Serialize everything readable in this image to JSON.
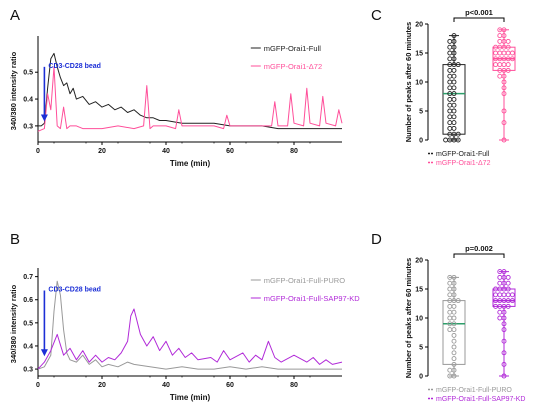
{
  "chart_data": [
    {
      "panel": "A",
      "type": "line",
      "xlabel": "Time (min)",
      "ylabel": "340/380 intensity ratio",
      "xlim": [
        0,
        95
      ],
      "ylim": [
        0.24,
        0.62
      ],
      "xticks": [
        0,
        20,
        40,
        60,
        80
      ],
      "yticks": [
        0.3,
        0.4,
        0.5
      ],
      "ytick_labels": [
        "0.3",
        "0.4",
        "0.5"
      ],
      "annotation": "CD3-CD28 bead",
      "annotation_x": 2,
      "annotation_arrow": [
        0.52,
        0.32
      ],
      "legend": "top-right",
      "series": [
        {
          "name": "mGFP-Orai1-Full",
          "color": "#222222",
          "x": [
            0,
            1,
            2,
            3,
            4,
            5,
            6,
            7,
            8,
            9,
            10,
            11,
            12,
            14,
            16,
            18,
            20,
            22,
            24,
            26,
            28,
            30,
            32,
            34,
            36,
            38,
            40,
            45,
            50,
            55,
            60,
            65,
            70,
            75,
            80,
            85,
            90,
            95
          ],
          "y": [
            0.3,
            0.3,
            0.31,
            0.44,
            0.55,
            0.57,
            0.52,
            0.48,
            0.45,
            0.46,
            0.42,
            0.44,
            0.4,
            0.41,
            0.38,
            0.39,
            0.37,
            0.38,
            0.36,
            0.37,
            0.35,
            0.36,
            0.34,
            0.33,
            0.33,
            0.32,
            0.32,
            0.31,
            0.31,
            0.31,
            0.3,
            0.3,
            0.3,
            0.29,
            0.29,
            0.29,
            0.29,
            0.29
          ]
        },
        {
          "name": "mGFP-Orai1-Δ72",
          "color": "#ff4f9a",
          "x": [
            0,
            2,
            3,
            4,
            5,
            6,
            7,
            8,
            9,
            10,
            12,
            14,
            20,
            25,
            30,
            33,
            34,
            35,
            36,
            40,
            43,
            44,
            45,
            50,
            55,
            58,
            59,
            60,
            65,
            70,
            73,
            74,
            75,
            78,
            79,
            80,
            83,
            84,
            85,
            88,
            89,
            90,
            93,
            94,
            95
          ],
          "y": [
            0.28,
            0.29,
            0.42,
            0.36,
            0.52,
            0.3,
            0.29,
            0.37,
            0.29,
            0.3,
            0.3,
            0.29,
            0.29,
            0.3,
            0.29,
            0.3,
            0.45,
            0.29,
            0.3,
            0.3,
            0.29,
            0.36,
            0.3,
            0.3,
            0.3,
            0.29,
            0.34,
            0.3,
            0.3,
            0.3,
            0.3,
            0.39,
            0.3,
            0.3,
            0.42,
            0.31,
            0.3,
            0.44,
            0.31,
            0.3,
            0.41,
            0.31,
            0.3,
            0.36,
            0.31
          ]
        }
      ]
    },
    {
      "panel": "B",
      "type": "line",
      "xlabel": "Time (min)",
      "ylabel": "340/380 intensity ratio",
      "xlim": [
        0,
        95
      ],
      "ylim": [
        0.27,
        0.72
      ],
      "xticks": [
        0,
        20,
        40,
        60,
        80
      ],
      "yticks": [
        0.3,
        0.4,
        0.5,
        0.6,
        0.7
      ],
      "ytick_labels": [
        "0.3",
        "0.4",
        "0.5",
        "0.6",
        "0.7"
      ],
      "annotation": "CD3-CD28 bead",
      "annotation_x": 2,
      "annotation_arrow": [
        0.64,
        0.36
      ],
      "legend": "top-right",
      "series": [
        {
          "name": "mGFP-Orai1-Full-PURO",
          "color": "#999999",
          "x": [
            0,
            2,
            4,
            5,
            6,
            7,
            8,
            9,
            10,
            12,
            14,
            16,
            18,
            20,
            22,
            25,
            28,
            30,
            35,
            40,
            45,
            50,
            55,
            60,
            65,
            70,
            75,
            80,
            85,
            90,
            95
          ],
          "y": [
            0.3,
            0.31,
            0.36,
            0.55,
            0.68,
            0.62,
            0.47,
            0.37,
            0.34,
            0.33,
            0.36,
            0.32,
            0.34,
            0.31,
            0.32,
            0.31,
            0.33,
            0.32,
            0.31,
            0.3,
            0.31,
            0.3,
            0.3,
            0.31,
            0.3,
            0.31,
            0.3,
            0.3,
            0.3,
            0.3,
            0.3
          ]
        },
        {
          "name": "mGFP-Orai1-Full-SAP97-KD",
          "color": "#b12ad8",
          "x": [
            0,
            2,
            4,
            6,
            8,
            10,
            12,
            14,
            16,
            18,
            20,
            22,
            24,
            26,
            28,
            29,
            30,
            32,
            34,
            36,
            38,
            40,
            42,
            44,
            46,
            48,
            50,
            54,
            56,
            58,
            60,
            64,
            66,
            68,
            70,
            72,
            74,
            76,
            80,
            84,
            86,
            88,
            90,
            92,
            95
          ],
          "y": [
            0.3,
            0.33,
            0.38,
            0.45,
            0.36,
            0.39,
            0.34,
            0.38,
            0.33,
            0.36,
            0.33,
            0.35,
            0.34,
            0.37,
            0.42,
            0.53,
            0.56,
            0.45,
            0.4,
            0.44,
            0.38,
            0.42,
            0.36,
            0.39,
            0.35,
            0.37,
            0.34,
            0.35,
            0.33,
            0.38,
            0.34,
            0.37,
            0.33,
            0.36,
            0.34,
            0.42,
            0.35,
            0.33,
            0.36,
            0.33,
            0.35,
            0.32,
            0.34,
            0.32,
            0.33
          ]
        }
      ]
    },
    {
      "panel": "C",
      "type": "box",
      "ylabel": "Number of peaks after 60 minutes",
      "ylim": [
        0,
        20
      ],
      "yticks": [
        0,
        5,
        10,
        15,
        20
      ],
      "significance": "p<0.001",
      "legend": "bottom",
      "series": [
        {
          "name": "mGFP-Orai1-Full",
          "color": "#222222",
          "median_color": "#2e9e6a",
          "min": 0,
          "q1": 1,
          "median": 8,
          "q3": 13,
          "max": 18,
          "points": [
            18,
            17,
            17,
            16,
            16,
            15,
            15,
            14,
            14,
            13,
            13,
            13,
            12,
            12,
            11,
            11,
            10,
            10,
            9,
            9,
            8,
            8,
            7,
            7,
            6,
            6,
            5,
            5,
            4,
            4,
            3,
            3,
            2,
            2,
            1,
            1,
            1,
            0,
            0,
            0,
            0
          ]
        },
        {
          "name": "mGFP-Orai1-Δ72",
          "color": "#ff4f9a",
          "median_color": "#ff4f9a",
          "min": 0,
          "q1": 12,
          "median": 14,
          "q3": 16,
          "max": 19,
          "points": [
            19,
            19,
            18,
            18,
            17,
            17,
            17,
            16,
            16,
            16,
            16,
            15,
            15,
            15,
            15,
            15,
            14,
            14,
            14,
            14,
            14,
            13,
            13,
            13,
            13,
            12,
            12,
            12,
            11,
            11,
            10,
            9,
            8,
            5,
            3,
            0
          ]
        }
      ]
    },
    {
      "panel": "D",
      "type": "box",
      "ylabel": "Number of peaks after 60 minutes",
      "ylim": [
        0,
        20
      ],
      "yticks": [
        0,
        5,
        10,
        15,
        20
      ],
      "significance": "p=0.002",
      "legend": "bottom",
      "series": [
        {
          "name": "mGFP-Orai1-Full-PURO",
          "color": "#999999",
          "median_color": "#2e9e6a",
          "min": 0,
          "q1": 2,
          "median": 9,
          "q3": 13,
          "max": 17,
          "points": [
            17,
            17,
            16,
            16,
            15,
            15,
            14,
            14,
            13,
            13,
            13,
            12,
            12,
            11,
            11,
            10,
            10,
            9,
            9,
            8,
            8,
            7,
            6,
            5,
            4,
            3,
            2,
            1,
            1,
            0,
            0
          ]
        },
        {
          "name": "mGFP-Orai1-Full-SAP97-KD",
          "color": "#b12ad8",
          "median_color": "#b12ad8",
          "min": 0,
          "q1": 12,
          "median": 13,
          "q3": 15,
          "max": 18,
          "points": [
            18,
            18,
            17,
            17,
            17,
            16,
            16,
            16,
            15,
            15,
            15,
            15,
            14,
            14,
            14,
            14,
            14,
            13,
            13,
            13,
            13,
            13,
            12,
            12,
            12,
            12,
            11,
            11,
            10,
            10,
            9,
            8,
            6,
            4,
            2,
            0
          ]
        }
      ]
    }
  ]
}
